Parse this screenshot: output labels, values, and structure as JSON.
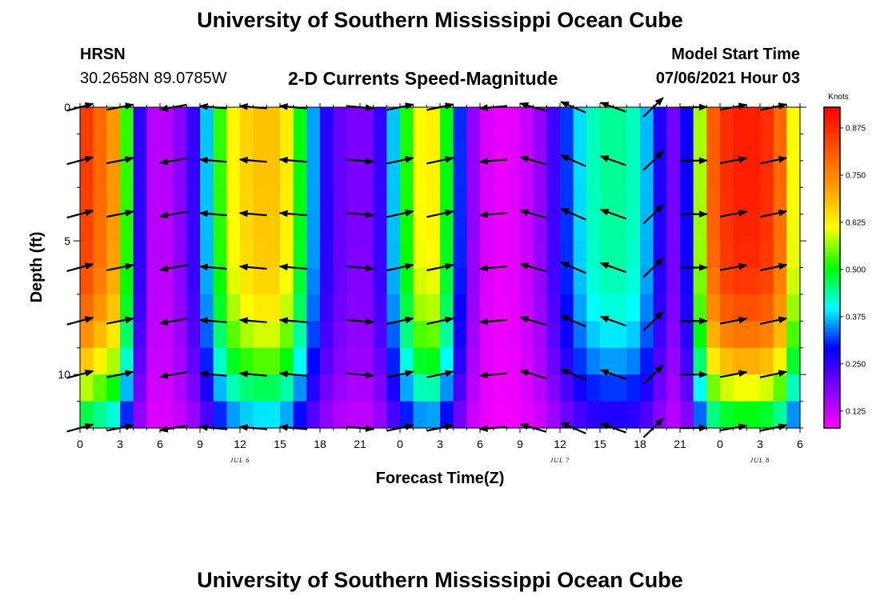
{
  "header": {
    "title": "University of Southern Mississippi Ocean Cube",
    "station": "HRSN",
    "coordinates": "30.2658N  89.0785W",
    "subtitle": "2-D Currents Speed-Magnitude",
    "model_start_label": "Model Start Time",
    "model_start_value": "07/06/2021 Hour 03"
  },
  "footer": {
    "title": "University of Southern Mississippi Ocean Cube"
  },
  "chart_data": {
    "type": "heatmap",
    "title": "2-D Currents Speed-Magnitude",
    "xlabel": "Forecast Time(Z)",
    "ylabel": "Depth (ft)",
    "x_ticks": [
      "0",
      "3",
      "6",
      "9",
      "12",
      "15",
      "18",
      "21",
      "0",
      "3",
      "6",
      "9",
      "12",
      "15",
      "18",
      "21",
      "0",
      "3",
      "6"
    ],
    "x_range_hours": [
      0,
      54
    ],
    "y_ticks": [
      "0",
      "5",
      "10"
    ],
    "y_range_ft": [
      0,
      12
    ],
    "date_labels": [
      {
        "text": "JUL 6",
        "hour": 12
      },
      {
        "text": "JUL 7",
        "hour": 36
      },
      {
        "text": "JUL 8",
        "hour": 51
      }
    ],
    "colorbar": {
      "units": "Knots",
      "range": [
        0.08,
        0.93
      ],
      "tick_values": [
        0.125,
        0.25,
        0.375,
        0.5,
        0.625,
        0.75,
        0.875
      ],
      "tick_labels": [
        "0.125",
        "0.250",
        "0.375",
        "0.500",
        "0.625",
        "0.750",
        "0.875"
      ],
      "colors": [
        "#ff00ff",
        "#8000ff",
        "#0000ff",
        "#00ffff",
        "#00ff00",
        "#ffff00",
        "#ffa000",
        "#ff5000",
        "#ff0000"
      ]
    },
    "surface_speed_by_hour": [
      [
        0,
        0.88
      ],
      [
        3,
        0.7
      ],
      [
        4,
        0.35
      ],
      [
        5,
        0.16
      ],
      [
        6,
        0.12
      ],
      [
        8,
        0.2
      ],
      [
        9,
        0.3
      ],
      [
        10,
        0.45
      ],
      [
        11,
        0.6
      ],
      [
        13,
        0.68
      ],
      [
        15,
        0.68
      ],
      [
        16,
        0.58
      ],
      [
        17,
        0.42
      ],
      [
        18,
        0.3
      ],
      [
        19,
        0.22
      ],
      [
        21,
        0.18
      ],
      [
        22,
        0.2
      ],
      [
        23,
        0.3
      ],
      [
        24,
        0.45
      ],
      [
        25,
        0.58
      ],
      [
        26,
        0.65
      ],
      [
        27,
        0.6
      ],
      [
        28,
        0.4
      ],
      [
        29,
        0.22
      ],
      [
        30,
        0.12
      ],
      [
        32,
        0.09
      ],
      [
        34,
        0.14
      ],
      [
        35,
        0.2
      ],
      [
        36,
        0.28
      ],
      [
        37,
        0.35
      ],
      [
        38,
        0.42
      ],
      [
        40,
        0.45
      ],
      [
        42,
        0.42
      ],
      [
        43,
        0.32
      ],
      [
        44,
        0.22
      ],
      [
        45,
        0.17
      ],
      [
        46,
        0.4
      ],
      [
        47,
        0.75
      ],
      [
        48,
        0.86
      ],
      [
        50,
        0.9
      ],
      [
        52,
        0.86
      ],
      [
        53,
        0.72
      ],
      [
        54,
        0.5
      ]
    ],
    "depth_attenuation": [
      [
        0,
        1.0
      ],
      [
        3,
        1.0
      ],
      [
        6,
        0.98
      ],
      [
        8,
        0.9
      ],
      [
        10,
        0.72
      ],
      [
        11,
        0.58
      ],
      [
        12,
        0.45
      ]
    ],
    "vector_hours": [
      0,
      3,
      7,
      10,
      13,
      16,
      21,
      24,
      27,
      31,
      34,
      37,
      40,
      43,
      46,
      49,
      52
    ],
    "vector_depths_ft": [
      0,
      2,
      4,
      6,
      8,
      10,
      12
    ],
    "vector_direction_deg_by_hour": [
      [
        0,
        15
      ],
      [
        4,
        10
      ],
      [
        5,
        -120
      ],
      [
        6,
        -150
      ],
      [
        7,
        -170
      ],
      [
        9,
        175
      ],
      [
        16,
        175
      ],
      [
        19,
        178
      ],
      [
        21,
        -5
      ],
      [
        24,
        12
      ],
      [
        27,
        12
      ],
      [
        28,
        20
      ],
      [
        29,
        -160
      ],
      [
        31,
        -175
      ],
      [
        33,
        172
      ],
      [
        35,
        155
      ],
      [
        38,
        157
      ],
      [
        41,
        162
      ],
      [
        44,
        -15
      ],
      [
        47,
        8
      ],
      [
        50,
        12
      ],
      [
        54,
        12
      ]
    ]
  }
}
